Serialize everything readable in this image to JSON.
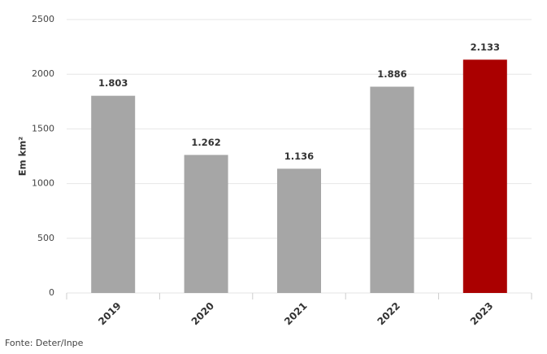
{
  "chart_data": {
    "type": "bar",
    "y_label": "Em km²",
    "source": "Fonte: Deter/Inpe",
    "categories": [
      "2019",
      "2020",
      "2021",
      "2022",
      "2023"
    ],
    "values": [
      1803,
      1262,
      1136,
      1886,
      2133
    ],
    "value_labels": [
      "1.803",
      "1.262",
      "1.136",
      "1.886",
      "2.133"
    ],
    "colors": [
      "#a6a6a6",
      "#a6a6a6",
      "#a6a6a6",
      "#a6a6a6",
      "#aa0000"
    ],
    "ylim": [
      0,
      2500
    ],
    "yticks": [
      0,
      500,
      1000,
      1500,
      2000,
      2500
    ],
    "grid": true
  }
}
